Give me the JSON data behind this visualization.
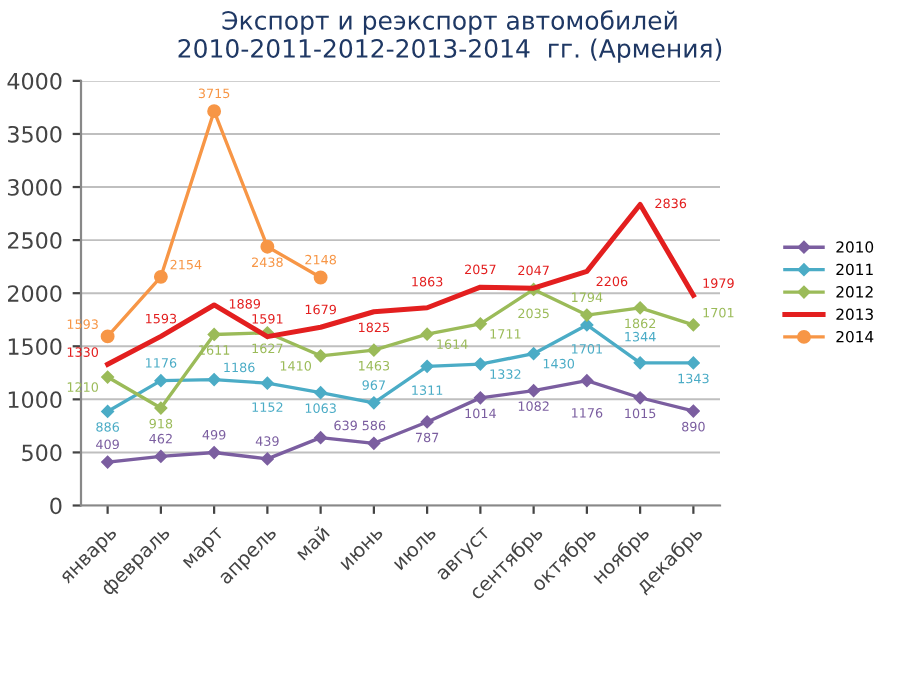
{
  "chart_data": {
    "type": "line",
    "title": "Экспорт и реэкспорт автомобилей\n2010-2011-2012-2013-2014  гг. (Армения)",
    "categories": [
      "январь",
      "февраль",
      "март",
      "апрель",
      "май",
      "июнь",
      "июль",
      "август",
      "сентябрь",
      "октябрь",
      "ноябрь",
      "декабрь"
    ],
    "series": [
      {
        "name": "2010",
        "color": "#7b5ea0",
        "marker": "diamond",
        "values": [
          409,
          462,
          499,
          439,
          639,
          586,
          787,
          1014,
          1082,
          1176,
          1015,
          890
        ]
      },
      {
        "name": "2011",
        "color": "#4bacc6",
        "marker": "diamond",
        "values": [
          886,
          1176,
          1186,
          1152,
          1063,
          967,
          1311,
          1332,
          1430,
          1701,
          1344,
          1343
        ]
      },
      {
        "name": "2012",
        "color": "#9bbb59",
        "marker": "diamond",
        "values": [
          1210,
          918,
          1611,
          1627,
          1410,
          1463,
          1614,
          1711,
          2035,
          1794,
          1862,
          1701
        ]
      },
      {
        "name": "2013",
        "color": "#e31f1f",
        "marker": "none",
        "values": [
          1330,
          1593,
          1889,
          1591,
          1679,
          1825,
          1863,
          2057,
          2047,
          2206,
          2836,
          1979
        ]
      },
      {
        "name": "2014",
        "color": "#f79646",
        "marker": "circle",
        "values": [
          1593,
          2154,
          3715,
          2438,
          2148,
          null,
          null,
          null,
          null,
          null,
          null,
          null
        ]
      }
    ],
    "ylim": [
      0,
      4000
    ],
    "yticks": [
      0,
      500,
      1000,
      1500,
      2000,
      2500,
      3000,
      3500,
      4000
    ],
    "grid": "y",
    "legend": "right",
    "data_labels": true
  }
}
